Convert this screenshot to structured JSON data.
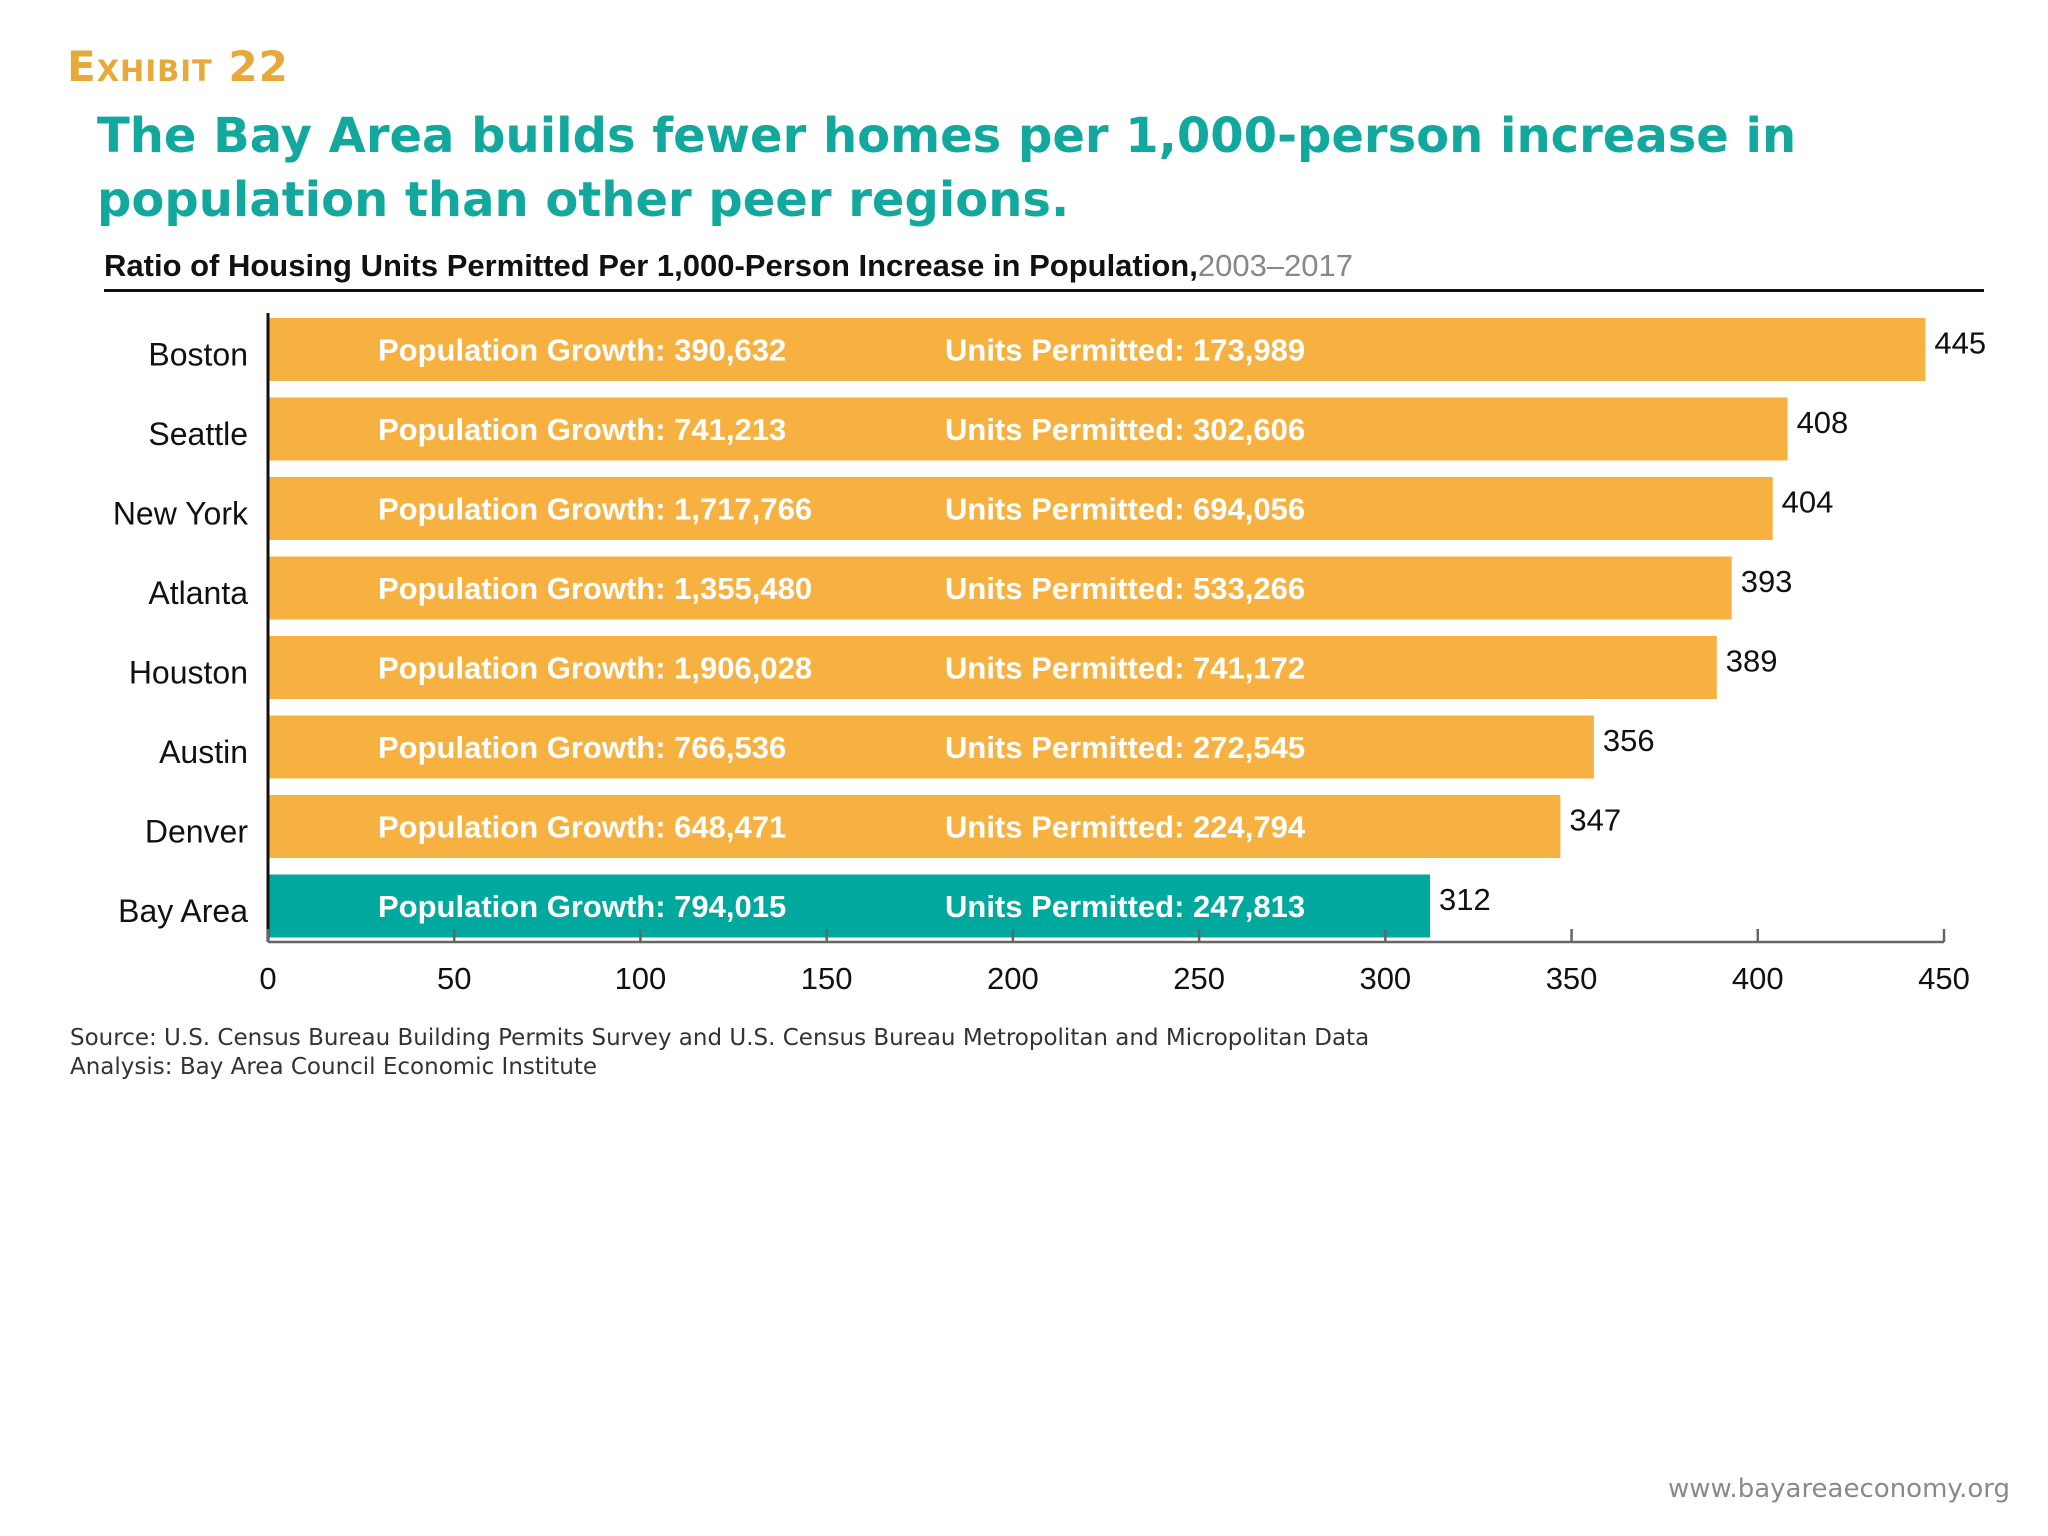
{
  "exhibit_label": "Exhibit 22",
  "headline": "The Bay Area builds fewer homes per 1,000-person increase in population than other peer regions.",
  "chart_data": {
    "type": "bar",
    "orientation": "horizontal",
    "title": "Ratio of Housing Units Permitted Per 1,000-Person Increase in Population,",
    "title_period": "2003–2017",
    "categories": [
      "Boston",
      "Seattle",
      "New York",
      "Atlanta",
      "Houston",
      "Austin",
      "Denver",
      "Bay Area"
    ],
    "values": [
      445,
      408,
      404,
      393,
      389,
      356,
      347,
      312
    ],
    "population_growth": [
      "390,632",
      "741,213",
      "1,717,766",
      "1,355,480",
      "1,906,028",
      "766,536",
      "648,471",
      "794,015"
    ],
    "units_permitted": [
      "173,989",
      "302,606",
      "694,056",
      "533,266",
      "741,172",
      "272,545",
      "224,794",
      "247,813"
    ],
    "population_label_prefix": "Population Growth: ",
    "units_label_prefix": "Units Permitted: ",
    "xlim": [
      0,
      450
    ],
    "xticks": [
      0,
      50,
      100,
      150,
      200,
      250,
      300,
      350,
      400,
      450
    ],
    "xlabel": "",
    "ylabel": "",
    "grid": false,
    "legend": "none",
    "colors": {
      "default": "#F7B140",
      "highlight": "#00A99D",
      "highlight_category": "Bay Area"
    }
  },
  "source": {
    "line1": "Source: U.S. Census Bureau Building Permits Survey and U.S. Census Bureau Metropolitan and Micropolitan Data",
    "line2": "Analysis: Bay Area Council Economic Institute"
  },
  "footer_url": "www.bayareaeconomy.org"
}
